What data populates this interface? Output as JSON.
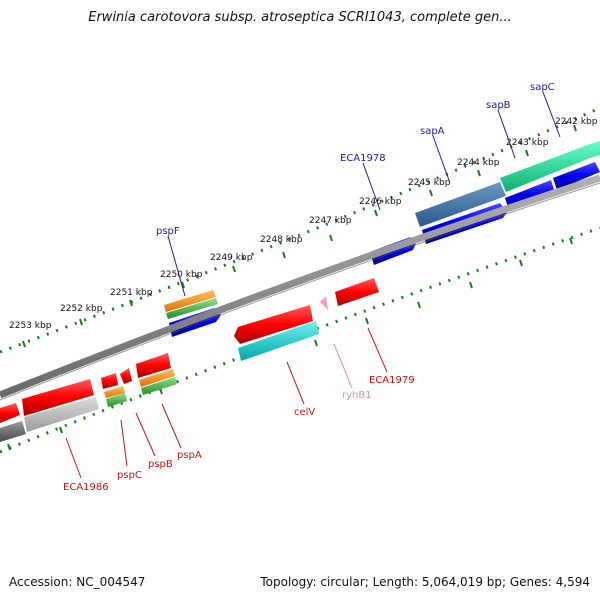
{
  "title": "Erwinia carotovora subsp. atroseptica SCRI1043, complete gen...",
  "footer": {
    "accession": "Accession: NC_004547",
    "summary": "Topology: circular; Length: 5,064,019 bp; Genes: 4,594"
  },
  "colors": {
    "forward_label": "#1a1aaa",
    "reverse_label": "#cc1111",
    "rna_label": "#e58ab3",
    "backbone": "#8a8a8a",
    "ticks": "#1f7a1f"
  },
  "scale_ticks": [
    "2242 kbp",
    "2243 kbp",
    "2244 kbp",
    "2245 kbp",
    "2246 kbp",
    "2247 kbp",
    "2248 kbp",
    "2249 kbp",
    "2250 kbp",
    "2251 kbp",
    "2252 kbp",
    "2253 kbp"
  ],
  "gene_labels": [
    "sapC",
    "sapB",
    "sapA",
    "ECA1978",
    "pspF",
    "ECA1979",
    "ryhB1",
    "celV",
    "pspA",
    "pspB",
    "pspC",
    "ECA1986"
  ]
}
